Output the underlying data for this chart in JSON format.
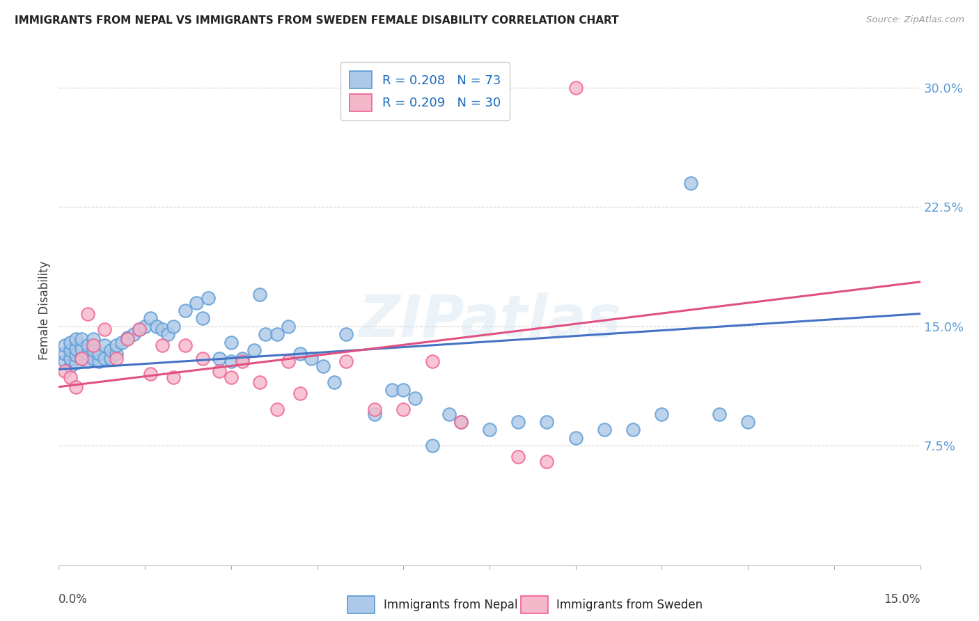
{
  "title": "IMMIGRANTS FROM NEPAL VS IMMIGRANTS FROM SWEDEN FEMALE DISABILITY CORRELATION CHART",
  "source": "Source: ZipAtlas.com",
  "ylabel": "Female Disability",
  "ytick_labels": [
    "7.5%",
    "15.0%",
    "22.5%",
    "30.0%"
  ],
  "ytick_vals": [
    0.075,
    0.15,
    0.225,
    0.3
  ],
  "xrange": [
    0.0,
    0.15
  ],
  "yrange": [
    0.0,
    0.32
  ],
  "legend1_R": "0.208",
  "legend1_N": "73",
  "legend2_R": "0.209",
  "legend2_N": "30",
  "nepal_color": "#adc8e8",
  "sweden_color": "#f5b8ca",
  "nepal_edge_color": "#5b9bd5",
  "sweden_edge_color": "#f06090",
  "nepal_trend_color": "#4472c4",
  "sweden_trend_color": "#e05080",
  "watermark": "ZIPatlas",
  "nepal_x": [
    0.001,
    0.001,
    0.001,
    0.002,
    0.002,
    0.002,
    0.002,
    0.003,
    0.003,
    0.003,
    0.003,
    0.004,
    0.004,
    0.004,
    0.005,
    0.005,
    0.005,
    0.006,
    0.006,
    0.006,
    0.007,
    0.007,
    0.008,
    0.008,
    0.009,
    0.009,
    0.01,
    0.01,
    0.011,
    0.012,
    0.013,
    0.014,
    0.015,
    0.016,
    0.017,
    0.018,
    0.019,
    0.02,
    0.022,
    0.024,
    0.025,
    0.026,
    0.028,
    0.03,
    0.03,
    0.032,
    0.034,
    0.035,
    0.036,
    0.038,
    0.04,
    0.042,
    0.044,
    0.046,
    0.048,
    0.05,
    0.055,
    0.058,
    0.06,
    0.062,
    0.065,
    0.068,
    0.07,
    0.075,
    0.08,
    0.085,
    0.09,
    0.095,
    0.1,
    0.105,
    0.11,
    0.115,
    0.12
  ],
  "nepal_y": [
    0.128,
    0.133,
    0.138,
    0.125,
    0.13,
    0.135,
    0.14,
    0.127,
    0.132,
    0.136,
    0.142,
    0.13,
    0.136,
    0.142,
    0.128,
    0.133,
    0.138,
    0.13,
    0.135,
    0.142,
    0.128,
    0.133,
    0.13,
    0.138,
    0.13,
    0.135,
    0.133,
    0.138,
    0.14,
    0.143,
    0.145,
    0.148,
    0.15,
    0.155,
    0.15,
    0.148,
    0.145,
    0.15,
    0.16,
    0.165,
    0.155,
    0.168,
    0.13,
    0.128,
    0.14,
    0.13,
    0.135,
    0.17,
    0.145,
    0.145,
    0.15,
    0.133,
    0.13,
    0.125,
    0.115,
    0.145,
    0.095,
    0.11,
    0.11,
    0.105,
    0.075,
    0.095,
    0.09,
    0.085,
    0.09,
    0.09,
    0.08,
    0.085,
    0.085,
    0.095,
    0.24,
    0.095,
    0.09
  ],
  "sweden_x": [
    0.001,
    0.002,
    0.003,
    0.004,
    0.005,
    0.006,
    0.008,
    0.01,
    0.012,
    0.014,
    0.016,
    0.018,
    0.02,
    0.022,
    0.025,
    0.028,
    0.03,
    0.032,
    0.035,
    0.038,
    0.04,
    0.042,
    0.05,
    0.055,
    0.06,
    0.065,
    0.07,
    0.08,
    0.085,
    0.09
  ],
  "sweden_y": [
    0.122,
    0.118,
    0.112,
    0.13,
    0.158,
    0.138,
    0.148,
    0.13,
    0.142,
    0.148,
    0.12,
    0.138,
    0.118,
    0.138,
    0.13,
    0.122,
    0.118,
    0.128,
    0.115,
    0.098,
    0.128,
    0.108,
    0.128,
    0.098,
    0.098,
    0.128,
    0.09,
    0.068,
    0.065,
    0.3
  ],
  "nepal_trend_x": [
    0.0,
    0.15
  ],
  "nepal_trend_y": [
    0.123,
    0.158
  ],
  "sweden_trend_x": [
    0.0,
    0.15
  ],
  "sweden_trend_y": [
    0.112,
    0.178
  ],
  "background_color": "#ffffff",
  "grid_color": "#cccccc"
}
